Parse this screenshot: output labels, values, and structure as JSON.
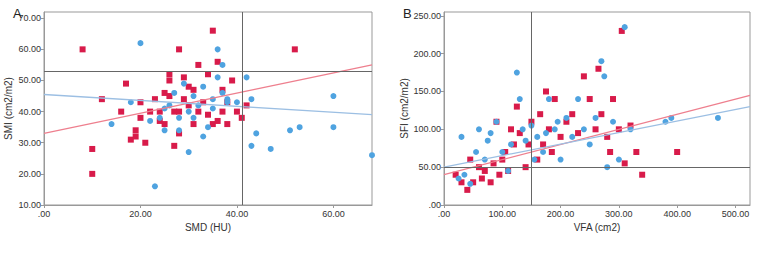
{
  "chart_data": [
    {
      "type": "scatter",
      "title": "A",
      "x_label": "SMD (HU)",
      "y_label": "SMI (cm2/m2)",
      "xlim": [
        0,
        68
      ],
      "ylim": [
        10,
        72
      ],
      "grid": false,
      "xticks": [
        {
          "value": 0,
          "label": ".00"
        },
        {
          "value": 20,
          "label": "20.00"
        },
        {
          "value": 40,
          "label": "40.00"
        },
        {
          "value": 60,
          "label": "60.00"
        }
      ],
      "yticks": [
        {
          "value": 10,
          "label": "10.00"
        },
        {
          "value": 20,
          "label": "20.00"
        },
        {
          "value": 30,
          "label": "30.00"
        },
        {
          "value": 40,
          "label": "40.00"
        },
        {
          "value": 50,
          "label": "50.00"
        },
        {
          "value": 60,
          "label": "60.00"
        },
        {
          "value": 70,
          "label": "70.00"
        }
      ],
      "vlines": [
        41
      ],
      "hlines": [
        53
      ],
      "series": [
        {
          "type": "scatter",
          "color": "#d81b4a",
          "marker": "square",
          "x": [
            8,
            10,
            10,
            12,
            16,
            17,
            18,
            19,
            19,
            20,
            20,
            21,
            22,
            23,
            24,
            24,
            25,
            25,
            26,
            26,
            26,
            27,
            27,
            28,
            28,
            28,
            29,
            29,
            30,
            30,
            31,
            31,
            32,
            32,
            33,
            34,
            34,
            35,
            35,
            36,
            36,
            37,
            37,
            38,
            38,
            39,
            40,
            41,
            42,
            52
          ],
          "values": [
            60,
            20,
            28,
            44,
            40,
            49,
            31,
            34,
            32,
            43,
            38,
            30,
            40,
            44,
            37,
            40,
            36,
            46,
            52,
            45,
            50,
            40,
            29,
            33,
            40,
            60,
            44,
            51,
            42,
            48,
            47,
            36,
            55,
            40,
            43,
            39,
            52,
            66,
            36,
            56,
            37,
            40,
            47,
            36,
            43,
            50,
            40,
            38,
            42,
            60
          ]
        },
        {
          "type": "scatter",
          "color": "#4fa3e0",
          "marker": "circle",
          "x": [
            14,
            18,
            20,
            22,
            23,
            24,
            25,
            25,
            26,
            27,
            28,
            28,
            29,
            30,
            30,
            31,
            31,
            32,
            33,
            33,
            34,
            35,
            35,
            36,
            36,
            37,
            37,
            38,
            38,
            40,
            42,
            43,
            43,
            44,
            47,
            51,
            53,
            60,
            60,
            68
          ],
          "values": [
            36,
            43,
            62,
            37,
            16,
            38,
            41,
            34,
            42,
            46,
            38,
            34,
            49,
            27,
            40,
            45,
            38,
            42,
            32,
            48,
            35,
            44,
            41,
            60,
            51,
            46,
            55,
            43,
            44,
            43,
            51,
            29,
            44,
            33,
            28,
            34,
            35,
            35,
            45,
            26
          ]
        },
        {
          "type": "line",
          "color": "#ee7f8e",
          "line_style": "solid",
          "x": [
            0,
            68
          ],
          "values": [
            33,
            55
          ]
        },
        {
          "type": "line",
          "color": "#9cbfe3",
          "line_style": "solid",
          "x": [
            0,
            68
          ],
          "values": [
            45.5,
            39
          ]
        }
      ]
    },
    {
      "type": "scatter",
      "title": "B",
      "x_label": "VFA (cm2)",
      "y_label": "SFI (cm2/m2)",
      "xlim": [
        0,
        525
      ],
      "ylim": [
        0,
        255
      ],
      "grid": false,
      "xticks": [
        {
          "value": 0,
          "label": ".00"
        },
        {
          "value": 100,
          "label": "100.00"
        },
        {
          "value": 200,
          "label": "200.00"
        },
        {
          "value": 300,
          "label": "300.00"
        },
        {
          "value": 400,
          "label": "400.00"
        },
        {
          "value": 500,
          "label": "500.00"
        }
      ],
      "yticks": [
        {
          "value": 0,
          "label": ".00"
        },
        {
          "value": 50,
          "label": "50.00"
        },
        {
          "value": 100,
          "label": "100.00"
        },
        {
          "value": 150,
          "label": "150.00"
        },
        {
          "value": 200,
          "label": "200.00"
        },
        {
          "value": 250,
          "label": "250.00"
        }
      ],
      "vlines": [
        150
      ],
      "hlines": [
        50
      ],
      "series": [
        {
          "type": "scatter",
          "color": "#d81b4a",
          "marker": "square",
          "x": [
            20,
            30,
            40,
            45,
            50,
            60,
            65,
            70,
            80,
            85,
            90,
            95,
            100,
            105,
            110,
            115,
            120,
            125,
            130,
            140,
            145,
            150,
            160,
            165,
            170,
            175,
            180,
            185,
            190,
            200,
            210,
            220,
            230,
            240,
            250,
            260,
            265,
            270,
            280,
            285,
            290,
            300,
            305,
            310,
            320,
            330,
            340,
            400
          ],
          "values": [
            40,
            30,
            20,
            60,
            30,
            50,
            35,
            45,
            30,
            55,
            110,
            40,
            60,
            70,
            45,
            100,
            80,
            130,
            95,
            50,
            80,
            110,
            60,
            120,
            80,
            150,
            100,
            70,
            140,
            90,
            110,
            120,
            95,
            170,
            140,
            100,
            180,
            120,
            90,
            70,
            140,
            100,
            230,
            55,
            105,
            70,
            40,
            70
          ]
        },
        {
          "type": "scatter",
          "color": "#4fa3e0",
          "marker": "circle",
          "x": [
            25,
            30,
            35,
            45,
            55,
            60,
            70,
            75,
            80,
            90,
            100,
            110,
            115,
            125,
            130,
            135,
            140,
            150,
            155,
            160,
            170,
            175,
            180,
            190,
            195,
            200,
            210,
            220,
            230,
            240,
            250,
            260,
            270,
            275,
            280,
            290,
            300,
            310,
            320,
            380,
            390,
            470
          ],
          "values": [
            35,
            90,
            40,
            28,
            70,
            100,
            60,
            85,
            95,
            110,
            70,
            45,
            80,
            175,
            140,
            100,
            85,
            105,
            60,
            90,
            70,
            95,
            140,
            100,
            110,
            60,
            115,
            90,
            140,
            100,
            80,
            115,
            190,
            170,
            50,
            110,
            60,
            235,
            100,
            110,
            115,
            115
          ]
        },
        {
          "type": "line",
          "color": "#ee7f8e",
          "line_style": "solid",
          "x": [
            0,
            525
          ],
          "values": [
            40,
            145
          ]
        },
        {
          "type": "line",
          "color": "#9cbfe3",
          "line_style": "solid",
          "x": [
            0,
            525
          ],
          "values": [
            50,
            130
          ]
        }
      ]
    }
  ]
}
